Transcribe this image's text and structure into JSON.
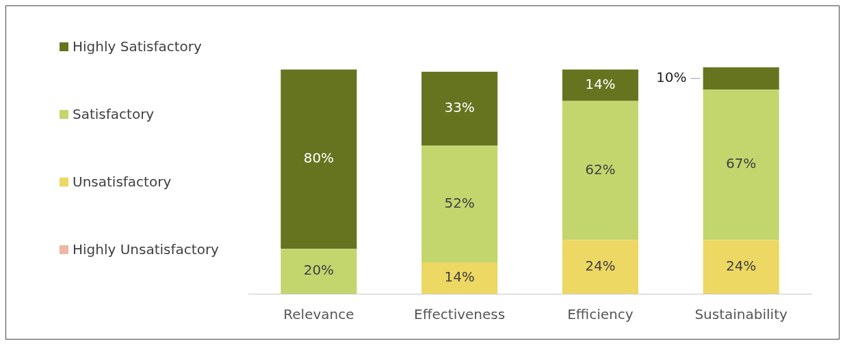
{
  "chart_data": {
    "type": "bar",
    "stacked": true,
    "categories": [
      "Relevance",
      "Effectiveness",
      "Efficiency",
      "Sustainability"
    ],
    "legend": "left",
    "grid": false,
    "series": [
      {
        "name": "Highly Unsatisfactory",
        "color": "#efb6a6",
        "values": [
          0,
          0,
          0,
          0
        ]
      },
      {
        "name": "Unsatisfactory",
        "color": "#ecd863",
        "values": [
          0,
          14,
          24,
          24
        ],
        "value_labels": [
          null,
          "14%",
          "24%",
          "24%"
        ]
      },
      {
        "name": "Satisfactory",
        "color": "#c3d66e",
        "values": [
          20,
          52,
          62,
          67
        ],
        "value_labels": [
          "20%",
          "52%",
          "62%",
          "67%"
        ]
      },
      {
        "name": "Highly Satisfactory",
        "color": "#66741f",
        "values": [
          80,
          33,
          14,
          10
        ],
        "value_labels": [
          "80%",
          "33%",
          "14%",
          "10%"
        ]
      }
    ]
  }
}
